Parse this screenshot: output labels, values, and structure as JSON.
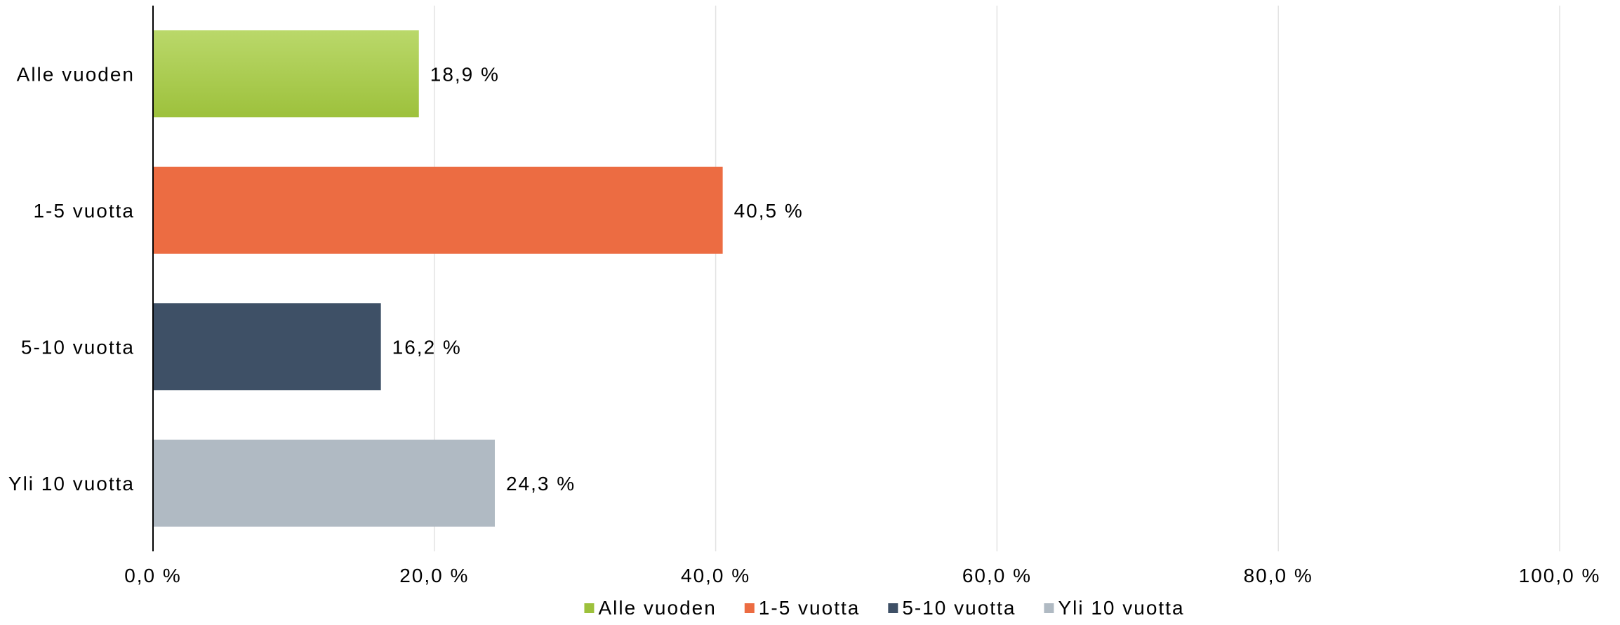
{
  "chart_data": {
    "type": "bar",
    "orientation": "horizontal",
    "categories": [
      "Alle vuoden",
      "1-5 vuotta",
      "5-10 vuotta",
      "Yli 10 vuotta"
    ],
    "values": [
      18.9,
      40.5,
      16.2,
      24.3
    ],
    "value_labels": [
      "18,9 %",
      "40,5 %",
      "16,2 %",
      "24,3 %"
    ],
    "colors": [
      "#9dc13c",
      "#ec6c42",
      "#3e5066",
      "#b0bac3"
    ],
    "gradient_first": {
      "top": "#bad86a",
      "bottom": "#9dc13c"
    },
    "xlim": [
      0,
      100
    ],
    "xticks": [
      0,
      20,
      40,
      60,
      80,
      100
    ],
    "xtick_labels": [
      "0,0 %",
      "20,0 %",
      "40,0 %",
      "60,0 %",
      "80,0 %",
      "100,0 %"
    ],
    "grid": true,
    "legend": {
      "placement": "bottom-center",
      "entries": [
        "Alle vuoden",
        "1-5 vuotta",
        "5-10 vuotta",
        "Yli 10 vuotta"
      ]
    },
    "title": "",
    "xlabel": "",
    "ylabel": ""
  }
}
